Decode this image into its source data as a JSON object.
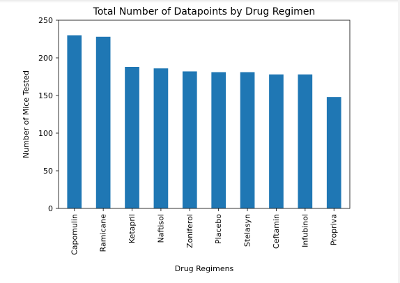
{
  "chart_data": {
    "type": "bar",
    "title": "Total Number of Datapoints by Drug Regimen",
    "xlabel": "Drug Regimens",
    "ylabel": "Number of Mice Tested",
    "categories": [
      "Capomulin",
      "Ramicane",
      "Ketapril",
      "Naftisol",
      "Zoniferol",
      "Placebo",
      "Stelasyn",
      "Ceftamin",
      "Infubinol",
      "Propriva"
    ],
    "values": [
      230,
      228,
      188,
      186,
      182,
      181,
      181,
      178,
      178,
      148
    ],
    "ylim": [
      0,
      250
    ],
    "yticks": [
      0,
      50,
      100,
      150,
      200,
      250
    ],
    "grid": false,
    "legend": null,
    "bar_color": "#1f77b4"
  }
}
